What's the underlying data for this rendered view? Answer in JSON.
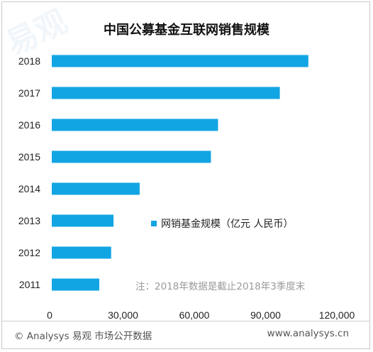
{
  "colors": {
    "bar": "#12a5e3",
    "text": "#222222",
    "note": "#9a9a9a"
  },
  "chart_data": {
    "type": "bar",
    "orientation": "horizontal",
    "title": "中国公募基金互联网销售规模",
    "categories": [
      "2018",
      "2017",
      "2016",
      "2015",
      "2014",
      "2013",
      "2012",
      "2011"
    ],
    "series": [
      {
        "name": "网销基金规模（亿元 人民币）",
        "values": [
          108000,
          96000,
          70000,
          67000,
          37000,
          26000,
          25000,
          20000
        ]
      }
    ],
    "xlim": [
      0,
      120000
    ],
    "xticks": [
      "0",
      "30,000",
      "60,000",
      "90,000",
      "120,000"
    ],
    "grid": false,
    "legend_position": "center-right",
    "annotation": "注：2018年数据是截止2018年3季度末"
  },
  "watermark": "易观",
  "footer": {
    "left": "© Analysys 易观 市场公开数据",
    "right": "www.analysys.cn"
  }
}
